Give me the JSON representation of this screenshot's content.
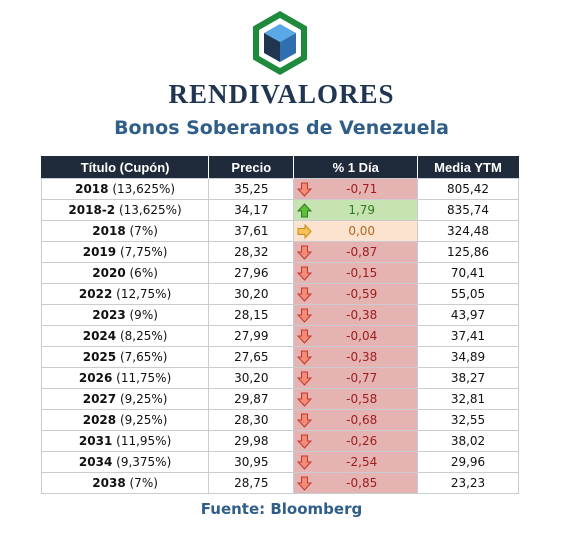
{
  "brand": "RENDIVALORES",
  "subtitle": "Bonos Soberanos de Venezuela",
  "headers": [
    "Título (Cupón)",
    "Precio",
    "% 1 Día",
    "Media YTM"
  ],
  "colors": {
    "header_bg": "#1f2a3a",
    "negative": "#e6b3b3",
    "positive": "#c7e3b2",
    "flat": "#fbe3cf",
    "title": "#2f5e8a"
  },
  "rows": [
    {
      "year": "2018",
      "coupon": "(13,625%)",
      "precio": "35,25",
      "change": "-0,71",
      "trend": "down",
      "ytm": "805,42"
    },
    {
      "year": "2018-2",
      "coupon": "(13,625%)",
      "precio": "34,17",
      "change": "1,79",
      "trend": "up",
      "ytm": "835,74"
    },
    {
      "year": "2018",
      "coupon": "(7%)",
      "precio": "37,61",
      "change": "0,00",
      "trend": "flat",
      "ytm": "324,48"
    },
    {
      "year": "2019",
      "coupon": "(7,75%)",
      "precio": "28,32",
      "change": "-0,87",
      "trend": "down",
      "ytm": "125,86"
    },
    {
      "year": "2020",
      "coupon": "(6%)",
      "precio": "27,96",
      "change": "-0,15",
      "trend": "down",
      "ytm": "70,41"
    },
    {
      "year": "2022",
      "coupon": "(12,75%)",
      "precio": "30,20",
      "change": "-0,59",
      "trend": "down",
      "ytm": "55,05"
    },
    {
      "year": "2023",
      "coupon": "(9%)",
      "precio": "28,15",
      "change": "-0,38",
      "trend": "down",
      "ytm": "43,97"
    },
    {
      "year": "2024",
      "coupon": "(8,25%)",
      "precio": "27,99",
      "change": "-0,04",
      "trend": "down",
      "ytm": "37,41"
    },
    {
      "year": "2025",
      "coupon": "(7,65%)",
      "precio": "27,65",
      "change": "-0,38",
      "trend": "down",
      "ytm": "34,89"
    },
    {
      "year": "2026",
      "coupon": "(11,75%)",
      "precio": "30,20",
      "change": "-0,77",
      "trend": "down",
      "ytm": "38,27"
    },
    {
      "year": "2027",
      "coupon": "(9,25%)",
      "precio": "29,87",
      "change": "-0,58",
      "trend": "down",
      "ytm": "32,81"
    },
    {
      "year": "2028",
      "coupon": "(9,25%)",
      "precio": "28,30",
      "change": "-0,68",
      "trend": "down",
      "ytm": "32,55"
    },
    {
      "year": "2031",
      "coupon": "(11,95%)",
      "precio": "29,98",
      "change": "-0,26",
      "trend": "down",
      "ytm": "38,02"
    },
    {
      "year": "2034",
      "coupon": "(9,375%)",
      "precio": "30,95",
      "change": "-2,54",
      "trend": "down",
      "ytm": "29,96"
    },
    {
      "year": "2038",
      "coupon": "(7%)",
      "precio": "28,75",
      "change": "-0,85",
      "trend": "down",
      "ytm": "23,23"
    }
  ],
  "source": "Fuente: Bloomberg"
}
